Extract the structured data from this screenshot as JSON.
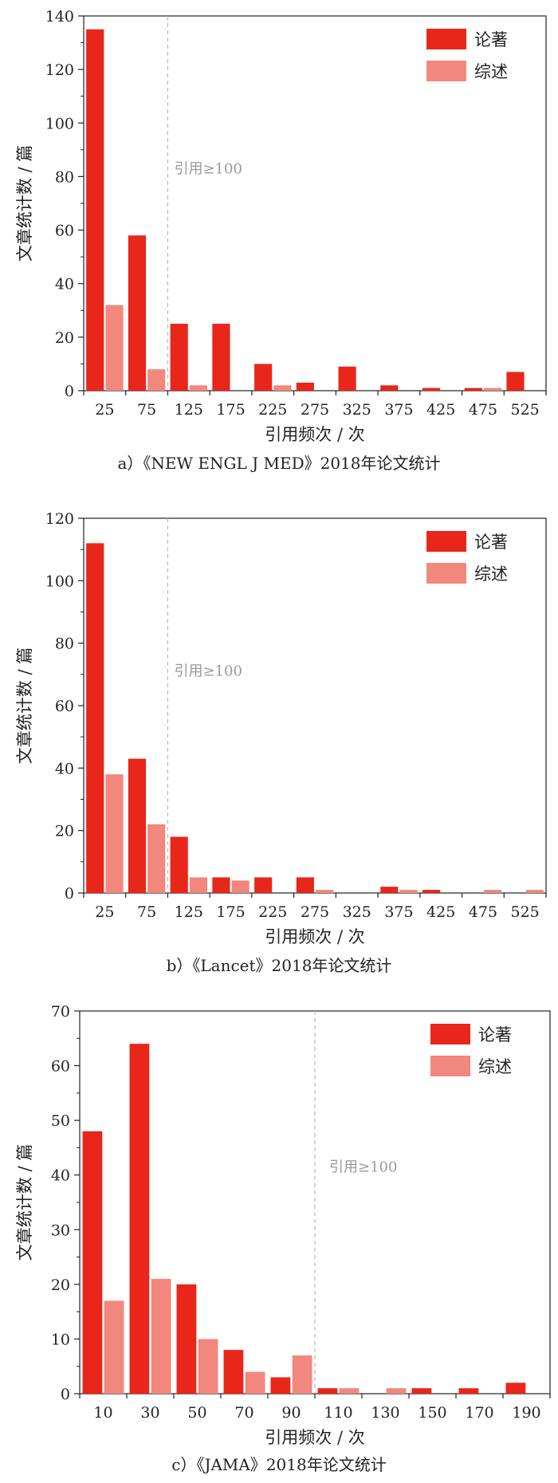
{
  "colors": {
    "articles": "#E8261A",
    "reviews": "#F2877E",
    "threshold_line": "#B8B8B8",
    "threshold_text": "#9A9A9A",
    "axis": "#222222"
  },
  "chart_data": [
    {
      "type": "bar",
      "caption": "a）《NEW ENGL J MED》2018年论文统计",
      "xlabel": "引用频次 / 次",
      "ylabel": "文章统计数 / 篇",
      "categories": [
        "25",
        "75",
        "125",
        "175",
        "225",
        "275",
        "325",
        "375",
        "425",
        "475",
        "525"
      ],
      "ylim": [
        0,
        140
      ],
      "yticks": [
        "0",
        "20",
        "40",
        "60",
        "80",
        "100",
        "120",
        "140"
      ],
      "threshold_label": "引用≥100",
      "threshold_x": 100,
      "legend_position": "top-right",
      "series": [
        {
          "name": "论著",
          "values": [
            135,
            58,
            25,
            25,
            10,
            3,
            9,
            2,
            1,
            1,
            7
          ]
        },
        {
          "name": "综述",
          "values": [
            32,
            8,
            2,
            0,
            2,
            0,
            0,
            0,
            0,
            1,
            0
          ]
        }
      ]
    },
    {
      "type": "bar",
      "caption": "b）《Lancet》2018年论文统计",
      "xlabel": "引用频次 / 次",
      "ylabel": "文章统计数 / 篇",
      "categories": [
        "25",
        "75",
        "125",
        "175",
        "225",
        "275",
        "325",
        "375",
        "425",
        "475",
        "525"
      ],
      "ylim": [
        0,
        120
      ],
      "yticks": [
        "0",
        "20",
        "40",
        "60",
        "80",
        "100",
        "120"
      ],
      "threshold_label": "引用≥100",
      "threshold_x": 100,
      "legend_position": "top-right",
      "series": [
        {
          "name": "论著",
          "values": [
            112,
            43,
            18,
            5,
            5,
            5,
            0,
            2,
            1,
            0,
            0
          ]
        },
        {
          "name": "综述",
          "values": [
            38,
            22,
            5,
            4,
            0,
            1,
            0,
            1,
            0,
            1,
            1
          ]
        }
      ]
    },
    {
      "type": "bar",
      "caption": "c）《JAMA》2018年论文统计",
      "xlabel": "引用频次 / 次",
      "ylabel": "文章统计数 / 篇",
      "categories": [
        "10",
        "30",
        "50",
        "70",
        "90",
        "110",
        "130",
        "150",
        "170",
        "190"
      ],
      "ylim": [
        0,
        70
      ],
      "yticks": [
        "0",
        "10",
        "20",
        "30",
        "40",
        "50",
        "60",
        "70"
      ],
      "threshold_label": "引用≥100",
      "threshold_x": 100,
      "legend_position": "top-right",
      "series": [
        {
          "name": "论著",
          "values": [
            48,
            64,
            20,
            8,
            3,
            1,
            0,
            1,
            1,
            2
          ]
        },
        {
          "name": "综述",
          "values": [
            17,
            21,
            10,
            4,
            7,
            1,
            1,
            0,
            0,
            0
          ]
        }
      ]
    }
  ]
}
